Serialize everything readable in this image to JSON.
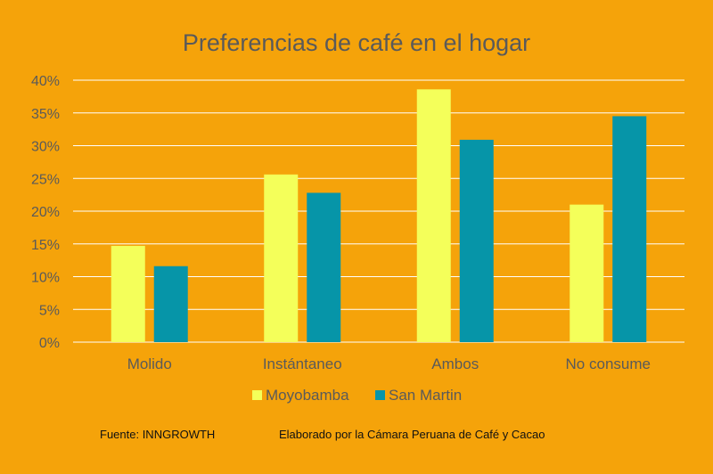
{
  "chart_data": {
    "type": "bar",
    "title": "Preferencias de café en el hogar",
    "categories": [
      "Molido",
      "Instántaneo",
      "Ambos",
      "No consume"
    ],
    "series": [
      {
        "name": "Moyobamba",
        "color": "#F4FF5A",
        "values": [
          14.7,
          25.6,
          38.6,
          21.0
        ]
      },
      {
        "name": "San Martin",
        "color": "#0695A8",
        "values": [
          11.6,
          22.8,
          30.9,
          34.5
        ]
      }
    ],
    "yticks": [
      "0%",
      "5%",
      "10%",
      "15%",
      "20%",
      "25%",
      "30%",
      "35%",
      "40%"
    ],
    "ylim": [
      0,
      40
    ],
    "grid": true,
    "legend": "bottom"
  },
  "footer": {
    "source": "Fuente: INNGROWTH",
    "credit": "Elaborado por la Cámara Peruana de Café y Cacao"
  },
  "colors": {
    "background": "#F5A30A",
    "gridline": "#FFFFFF",
    "text": "#5A5A5A"
  }
}
